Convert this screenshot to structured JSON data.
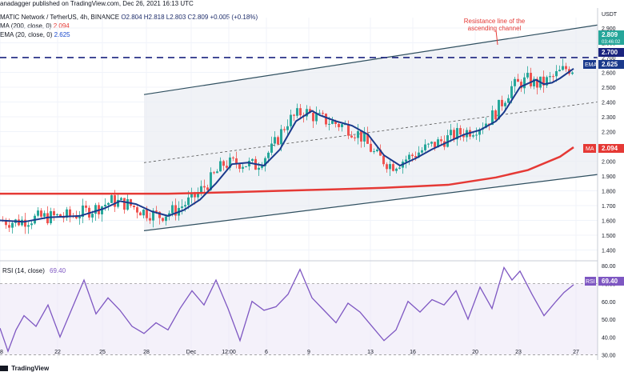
{
  "header": {
    "publisher": "anadagger published on TradingView.com, Dec 26, 2021 16:13 UTC",
    "symbol_line": "MATIC Network / TetherUS, 4h, BINANCE",
    "ohlc": "O2.804  H2.818  L2.803  C2.809  +0.005 (+0.18%)",
    "ma_label": "MA (200, close, 0)",
    "ma_value": "2.094",
    "ema_label": "EMA (20, close, 0)",
    "ema_value": "2.625",
    "currency": "USDT"
  },
  "annotation": {
    "text_line1": "Resistance line of the",
    "text_line2": "ascending channel"
  },
  "badges": {
    "price": "2.809",
    "countdown": "03:46:02",
    "level": "2.700",
    "ema_tag": "EMA",
    "ema": "2.625",
    "ma_tag": "MA",
    "ma": "2.094",
    "rsi_tag": "RSI",
    "rsi": "69.40"
  },
  "rsi_panel": {
    "label": "RSI (14, close)",
    "value": "69.40"
  },
  "footer": {
    "brand": "TradingView"
  },
  "colors": {
    "up": "#26a69a",
    "down": "#ef5350",
    "ema": "#1a3a8c",
    "ma": "#e53935",
    "rsi": "#7e57c2",
    "channel": "#2f4f5f",
    "level": "#1a237e"
  },
  "chart_data": {
    "type": "line",
    "title": "MATIC Network / TetherUS, 4h, BINANCE",
    "price_axis_ticks": [
      "2.900",
      "2.800",
      "2.700",
      "2.600",
      "2.500",
      "2.400",
      "2.300",
      "2.200",
      "2.100",
      "2.000",
      "1.900",
      "1.800",
      "1.700",
      "1.600",
      "1.500",
      "1.400"
    ],
    "rsi_axis_ticks": [
      "80.00",
      "70.00",
      "60.00",
      "50.00",
      "40.00",
      "30.00"
    ],
    "x_ticks": [
      "18",
      "22",
      "25",
      "28",
      "Dec",
      "12:00",
      "6",
      "9",
      "13",
      "16",
      "20",
      "23",
      "27"
    ],
    "ylim": [
      1.37,
      2.97
    ],
    "rsi_ylim": [
      28,
      81
    ],
    "horizontal_level": 2.7,
    "last_price": 2.809,
    "series": [
      {
        "name": "MA (200, close, 0)",
        "x": [
          0,
          60,
          140,
          210,
          290,
          350,
          420,
          480,
          560,
          620,
          660,
          700,
          717
        ],
        "values": [
          1.78,
          1.78,
          1.78,
          1.78,
          1.79,
          1.8,
          1.81,
          1.82,
          1.84,
          1.89,
          1.94,
          2.03,
          2.094
        ]
      },
      {
        "name": "EMA (20, close, 0)",
        "x": [
          0,
          30,
          60,
          100,
          130,
          150,
          170,
          190,
          210,
          230,
          250,
          270,
          290,
          310,
          330,
          350,
          370,
          390,
          400,
          420,
          440,
          460,
          480,
          500,
          520,
          540,
          560,
          580,
          600,
          620,
          630,
          650,
          670,
          680,
          690,
          700,
          717
        ],
        "values": [
          1.6,
          1.59,
          1.62,
          1.63,
          1.68,
          1.73,
          1.71,
          1.66,
          1.63,
          1.67,
          1.74,
          1.85,
          1.98,
          1.99,
          1.97,
          2.08,
          2.27,
          2.34,
          2.31,
          2.27,
          2.24,
          2.18,
          2.04,
          1.97,
          2.02,
          2.08,
          2.13,
          2.18,
          2.21,
          2.27,
          2.33,
          2.5,
          2.55,
          2.52,
          2.53,
          2.56,
          2.625
        ]
      },
      {
        "name": "RSI (14, close)",
        "x": [
          0,
          10,
          20,
          30,
          45,
          60,
          75,
          90,
          105,
          120,
          135,
          150,
          165,
          180,
          195,
          210,
          225,
          240,
          255,
          270,
          285,
          300,
          315,
          330,
          345,
          360,
          375,
          390,
          405,
          420,
          435,
          450,
          465,
          480,
          495,
          510,
          525,
          540,
          555,
          570,
          585,
          600,
          615,
          630,
          640,
          650,
          665,
          680,
          695,
          705,
          717
        ],
        "values": [
          45,
          32,
          44,
          52,
          46,
          58,
          40,
          56,
          72,
          53,
          62,
          55,
          46,
          42,
          48,
          44,
          56,
          66,
          58,
          72,
          56,
          38,
          60,
          55,
          57,
          64,
          78,
          62,
          55,
          48,
          59,
          54,
          46,
          38,
          44,
          60,
          54,
          61,
          58,
          66,
          50,
          68,
          56,
          79,
          72,
          77,
          64,
          52,
          60,
          65,
          69.4
        ]
      }
    ],
    "channel": {
      "upper": {
        "x": [
          180,
          747
        ],
        "values": [
          2.45,
          2.92
        ]
      },
      "lower": {
        "x": [
          180,
          747
        ],
        "values": [
          1.53,
          1.91
        ]
      },
      "mid": {
        "x": [
          180,
          747
        ],
        "values": [
          1.99,
          2.4
        ]
      }
    }
  }
}
